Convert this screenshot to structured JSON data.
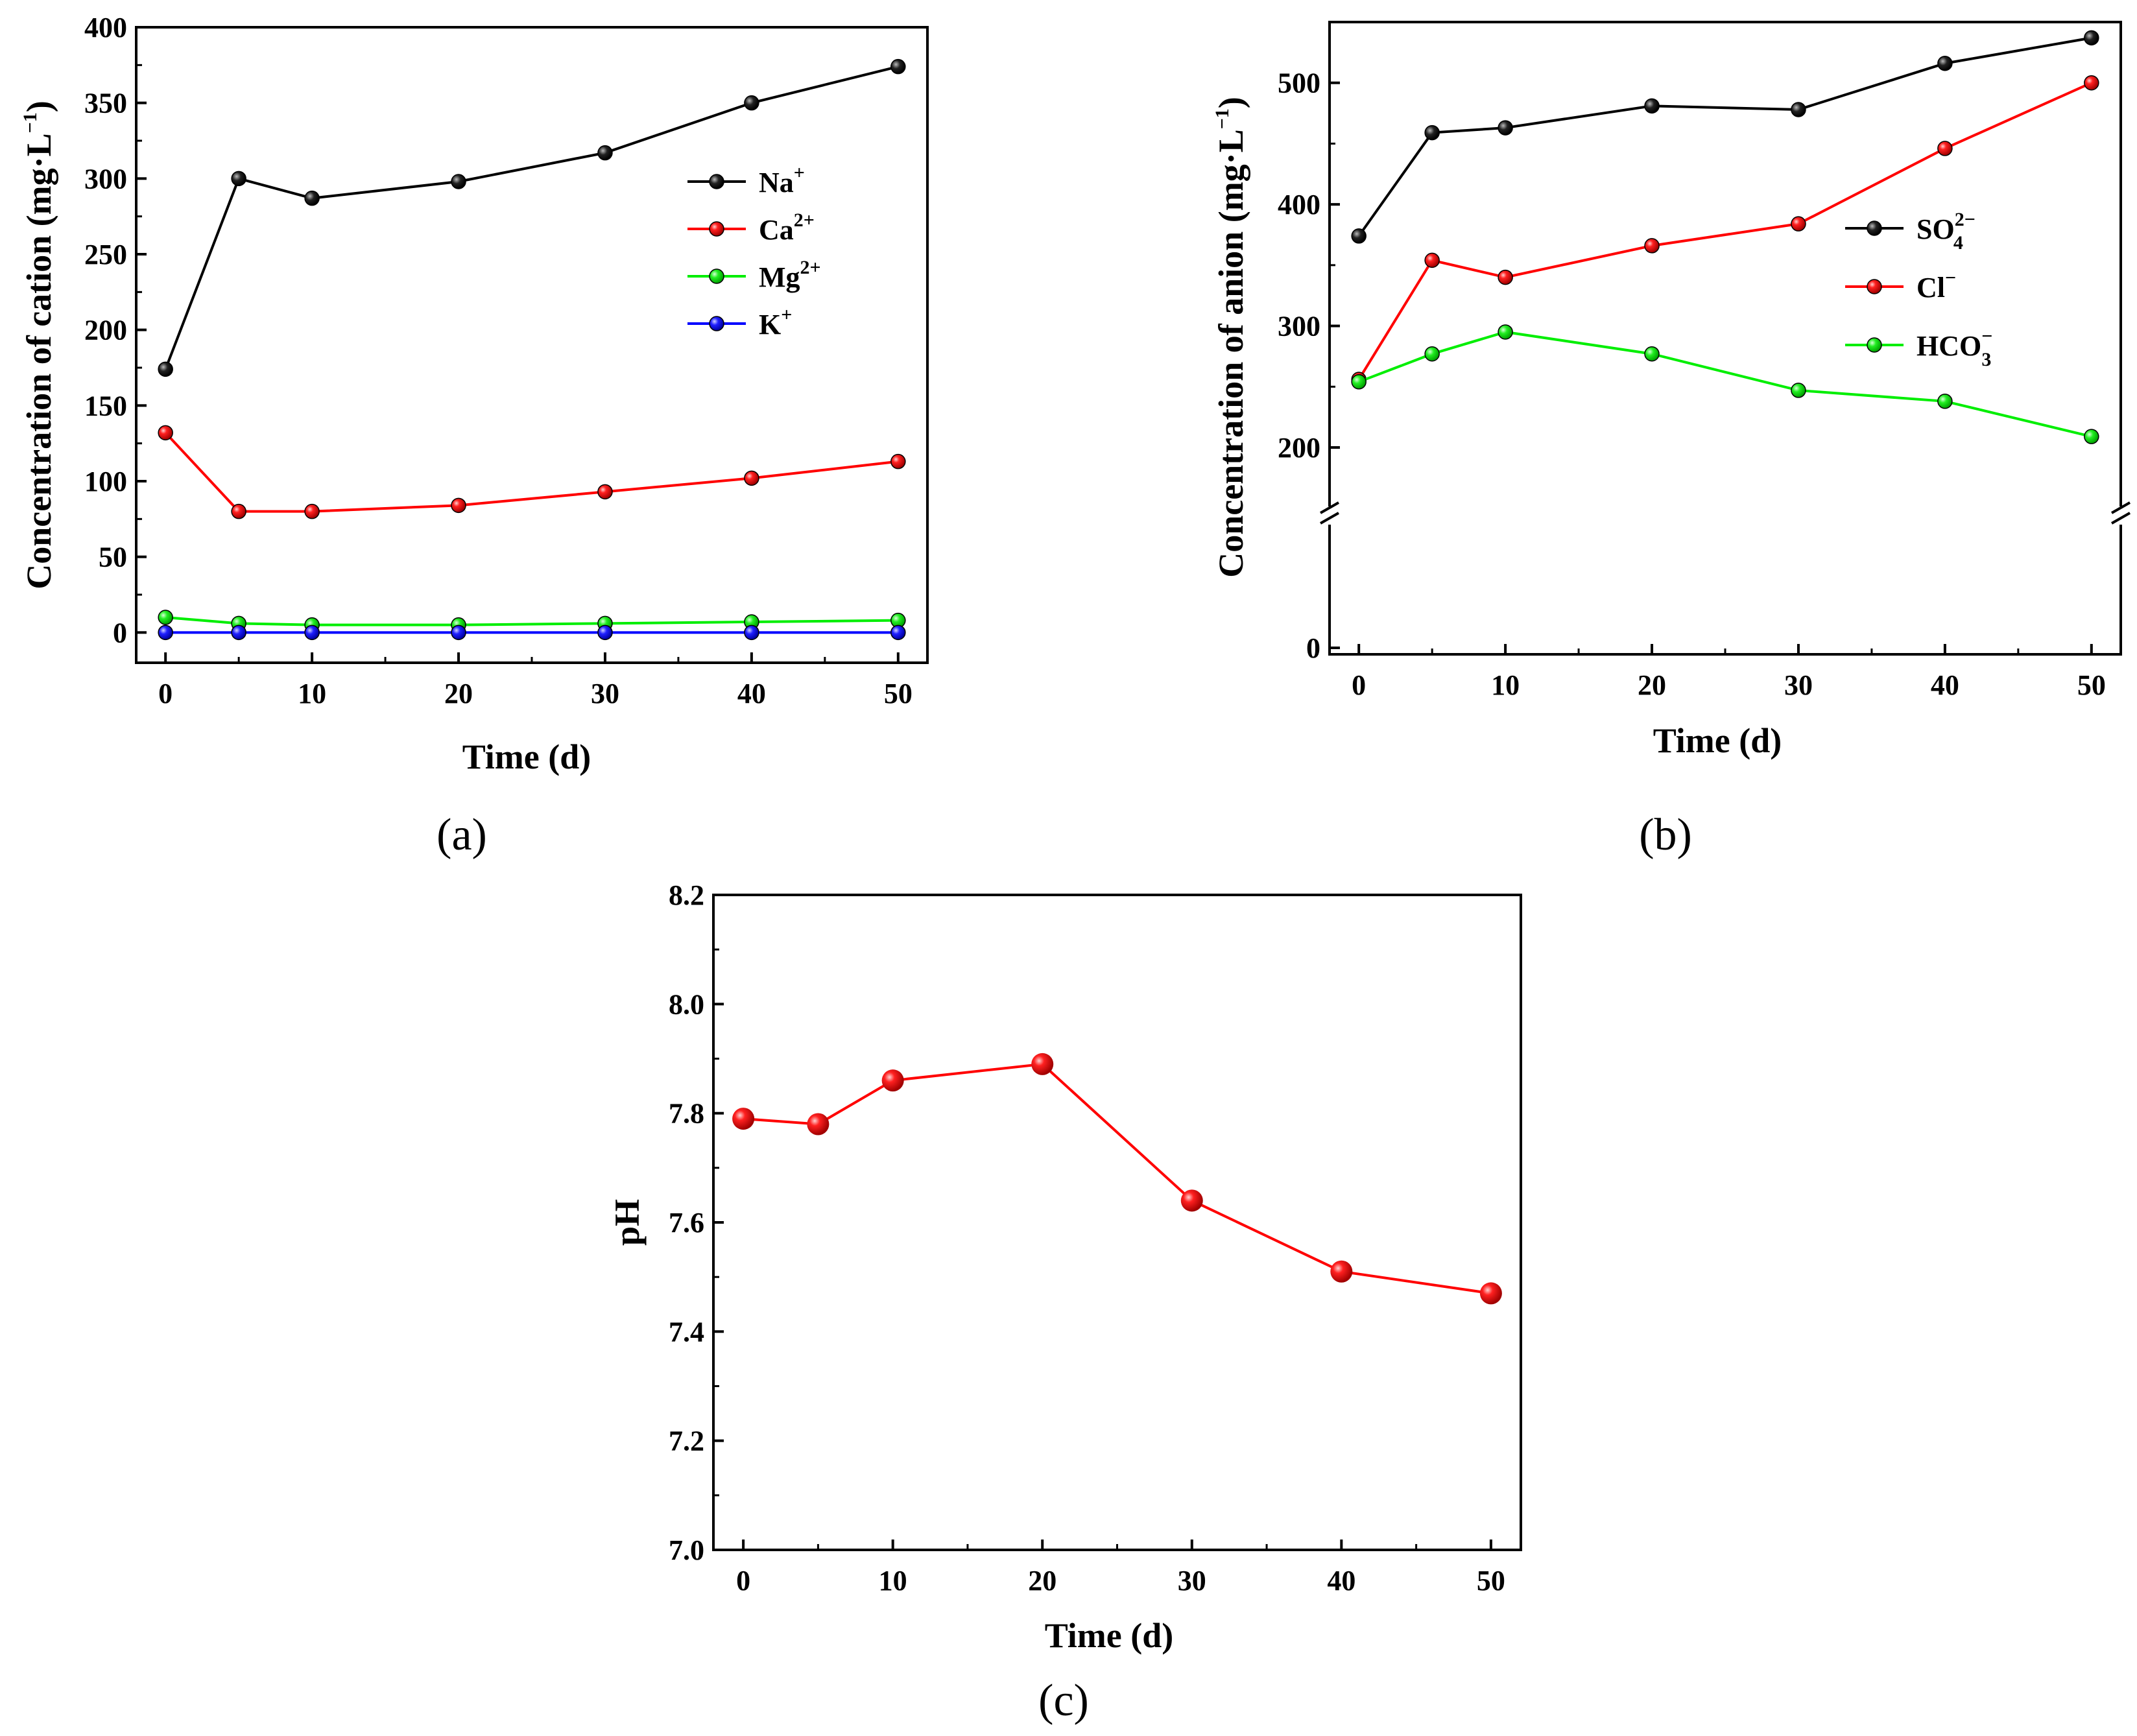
{
  "chart_data": [
    {
      "type": "line",
      "panel_label": "(a)",
      "xlabel": "Time (d)",
      "ylabel": "Concentration of cation (mg·L",
      "ylabel_suffix": "−1",
      "ylabel_close": ")",
      "x": [
        0,
        5,
        10,
        20,
        30,
        40,
        50
      ],
      "xlim": [
        -2,
        52
      ],
      "ylim": [
        -20,
        400
      ],
      "xticks": [
        "0",
        "10",
        "20",
        "30",
        "40",
        "50"
      ],
      "yticks": [
        "0",
        "50",
        "100",
        "150",
        "200",
        "250",
        "300",
        "350",
        "400"
      ],
      "legend_position": "right-middle",
      "series": [
        {
          "name": "Na",
          "sup": "+",
          "color": "#000000",
          "values": [
            174,
            300,
            287,
            298,
            317,
            350,
            374
          ]
        },
        {
          "name": "Ca",
          "sup": "2+",
          "color": "#ff0000",
          "values": [
            132,
            80,
            80,
            84,
            93,
            102,
            113
          ]
        },
        {
          "name": "Mg",
          "sup": "2+",
          "color": "#00ee00",
          "values": [
            10,
            6,
            5,
            5,
            6,
            7,
            8
          ]
        },
        {
          "name": "K",
          "sup": "+",
          "color": "#0000ff",
          "values": [
            0,
            0,
            0,
            0,
            0,
            0,
            0
          ]
        }
      ]
    },
    {
      "type": "line",
      "panel_label": "(b)",
      "xlabel": "Time (d)",
      "ylabel": "Concentration of anion (mg·L",
      "ylabel_suffix": "−1",
      "ylabel_close": ")",
      "x": [
        0,
        5,
        10,
        20,
        30,
        40,
        50
      ],
      "xlim": [
        -2,
        52
      ],
      "ylim": [
        0,
        550
      ],
      "axis_break": [
        160,
        160
      ],
      "xticks": [
        "0",
        "10",
        "20",
        "30",
        "40",
        "50"
      ],
      "yticks": [
        "0",
        "200",
        "300",
        "400",
        "500"
      ],
      "legend_position": "right-middle",
      "series": [
        {
          "name": "SO",
          "sub": "4",
          "sup": "2−",
          "color": "#000000",
          "values": [
            374,
            459,
            463,
            481,
            478,
            516,
            537
          ]
        },
        {
          "name": "Cl",
          "sup": "−",
          "color": "#ff0000",
          "values": [
            256,
            354,
            340,
            366,
            384,
            446,
            500
          ]
        },
        {
          "name": "HCO",
          "sub": "3",
          "sup": "−",
          "color": "#00ee00",
          "values": [
            254,
            277,
            295,
            277,
            247,
            238,
            209
          ]
        }
      ]
    },
    {
      "type": "line",
      "panel_label": "(c)",
      "xlabel": "Time (d)",
      "ylabel": "pH",
      "x": [
        0,
        5,
        10,
        20,
        30,
        40,
        50
      ],
      "xlim": [
        -2,
        52
      ],
      "ylim": [
        7.0,
        8.2
      ],
      "xticks": [
        "0",
        "10",
        "20",
        "30",
        "40",
        "50"
      ],
      "yticks": [
        "7.0",
        "7.2",
        "7.4",
        "7.6",
        "7.8",
        "8.0",
        "8.2"
      ],
      "series": [
        {
          "name": "pH",
          "color": "#ff0000",
          "values": [
            7.79,
            7.78,
            7.86,
            7.89,
            7.64,
            7.51,
            7.47
          ]
        }
      ]
    }
  ]
}
